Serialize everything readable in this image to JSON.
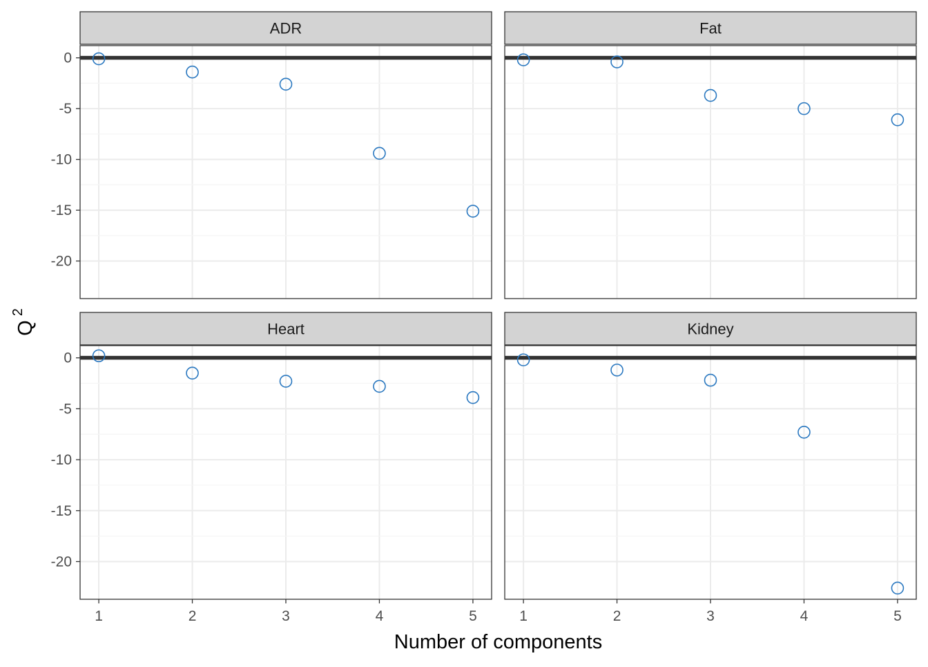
{
  "chart_data": {
    "type": "scatter",
    "xlabel": "Number of components",
    "ylabel": "Q",
    "ylabel_superscript": "2",
    "x_ticks": [
      1,
      2,
      3,
      4,
      5
    ],
    "y_ticks": [
      0,
      -5,
      -10,
      -15,
      -20
    ],
    "xlim": [
      0.8,
      5.2
    ],
    "ylim": [
      -23.7,
      1.2
    ],
    "reference_line_y": 0,
    "grid": true,
    "shared_axes": true,
    "marker": "open-circle",
    "colors": {
      "points": "#2a78c0",
      "reference_line": "#333333",
      "strip_fill": "#d3d3d3",
      "grid": "#ebebeb",
      "panel_border": "#333333"
    },
    "panels": [
      {
        "title": "ADR",
        "x": [
          1,
          2,
          3,
          4,
          5
        ],
        "y": [
          -0.1,
          -1.4,
          -2.6,
          -9.4,
          -15.1
        ]
      },
      {
        "title": "Fat",
        "x": [
          1,
          2,
          3,
          4,
          5
        ],
        "y": [
          -0.2,
          -0.4,
          -3.7,
          -5.0,
          -6.1
        ]
      },
      {
        "title": "Heart",
        "x": [
          1,
          2,
          3,
          4,
          5
        ],
        "y": [
          0.2,
          -1.5,
          -2.3,
          -2.8,
          -3.9
        ]
      },
      {
        "title": "Kidney",
        "x": [
          1,
          2,
          3,
          4,
          5
        ],
        "y": [
          -0.2,
          -1.2,
          -2.2,
          -7.3,
          -22.6
        ]
      }
    ]
  }
}
